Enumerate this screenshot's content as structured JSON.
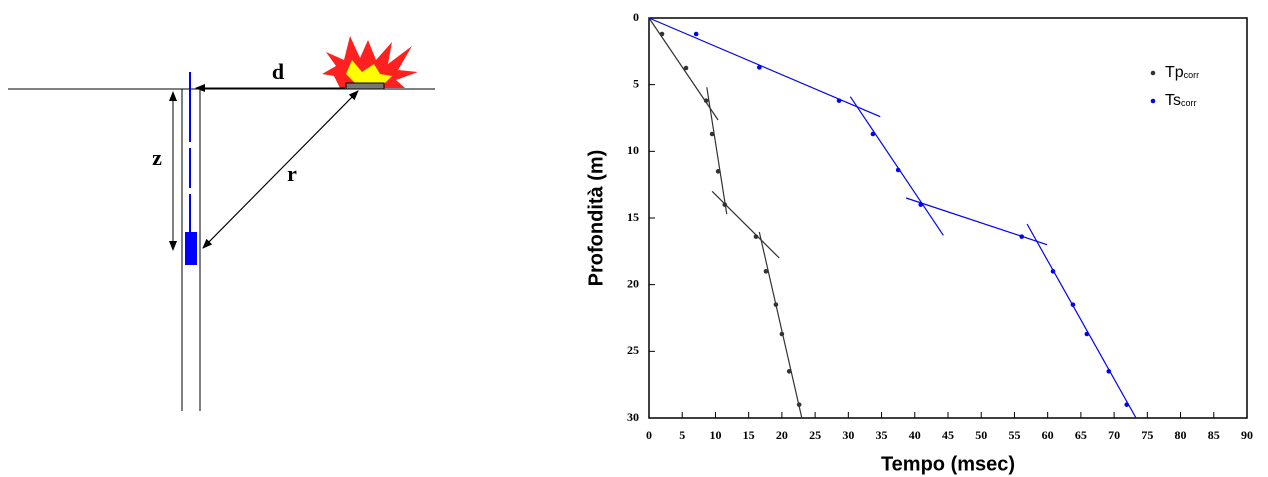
{
  "diagram": {
    "labels": [
      "d",
      "z",
      "r"
    ]
  },
  "chart_data": {
    "type": "scatter",
    "x_label": "Tempo (msec)",
    "y_label": "Profondità (m)",
    "xlim": [
      0,
      90
    ],
    "ylim": [
      30,
      0
    ],
    "xticks": [
      0,
      5,
      10,
      15,
      20,
      25,
      30,
      35,
      40,
      45,
      50,
      55,
      60,
      65,
      70,
      75,
      80,
      85,
      90
    ],
    "yticks": [
      0,
      5,
      10,
      15,
      20,
      25,
      30
    ],
    "legend": "upper right",
    "series": [
      {
        "name": "Tp",
        "subscript": "corr",
        "color": "#333333",
        "x": [
          1.96,
          5.57,
          8.6,
          9.5,
          10.4,
          11.4,
          16.1,
          17.6,
          19.1,
          20.0,
          21.1,
          22.6
        ],
        "values": [
          1.2,
          3.75,
          6.2,
          8.7,
          11.5,
          14.0,
          16.4,
          19.0,
          21.5,
          23.7,
          26.5,
          29.0
        ],
        "fits": [
          {
            "x": [
              0,
              10.4
            ],
            "y": [
              0,
              7.65
            ]
          },
          {
            "x": [
              8.7,
              11.7
            ],
            "y": [
              5.2,
              14.7
            ]
          },
          {
            "x": [
              9.5,
              19.6
            ],
            "y": [
              13.0,
              18.0
            ]
          },
          {
            "x": [
              16.6,
              23.0
            ],
            "y": [
              16.05,
              30
            ]
          }
        ]
      },
      {
        "name": "Ts",
        "subscript": "corr",
        "color": "#0000ff",
        "x": [
          7.1,
          16.6,
          28.6,
          33.7,
          37.5,
          40.9,
          56.1,
          60.8,
          63.8,
          65.9,
          69.2,
          71.9
        ],
        "values": [
          1.2,
          3.7,
          6.2,
          8.7,
          11.4,
          14.0,
          16.4,
          19.0,
          21.5,
          23.7,
          26.5,
          29.0
        ],
        "fits": [
          {
            "x": [
              0,
              34.8
            ],
            "y": [
              0,
              7.4
            ]
          },
          {
            "x": [
              30.3,
              44.3
            ],
            "y": [
              5.9,
              16.3
            ]
          },
          {
            "x": [
              38.7,
              59.9
            ],
            "y": [
              13.5,
              17.0
            ]
          },
          {
            "x": [
              56.9,
              73.3
            ],
            "y": [
              15.45,
              30
            ]
          }
        ]
      }
    ]
  }
}
